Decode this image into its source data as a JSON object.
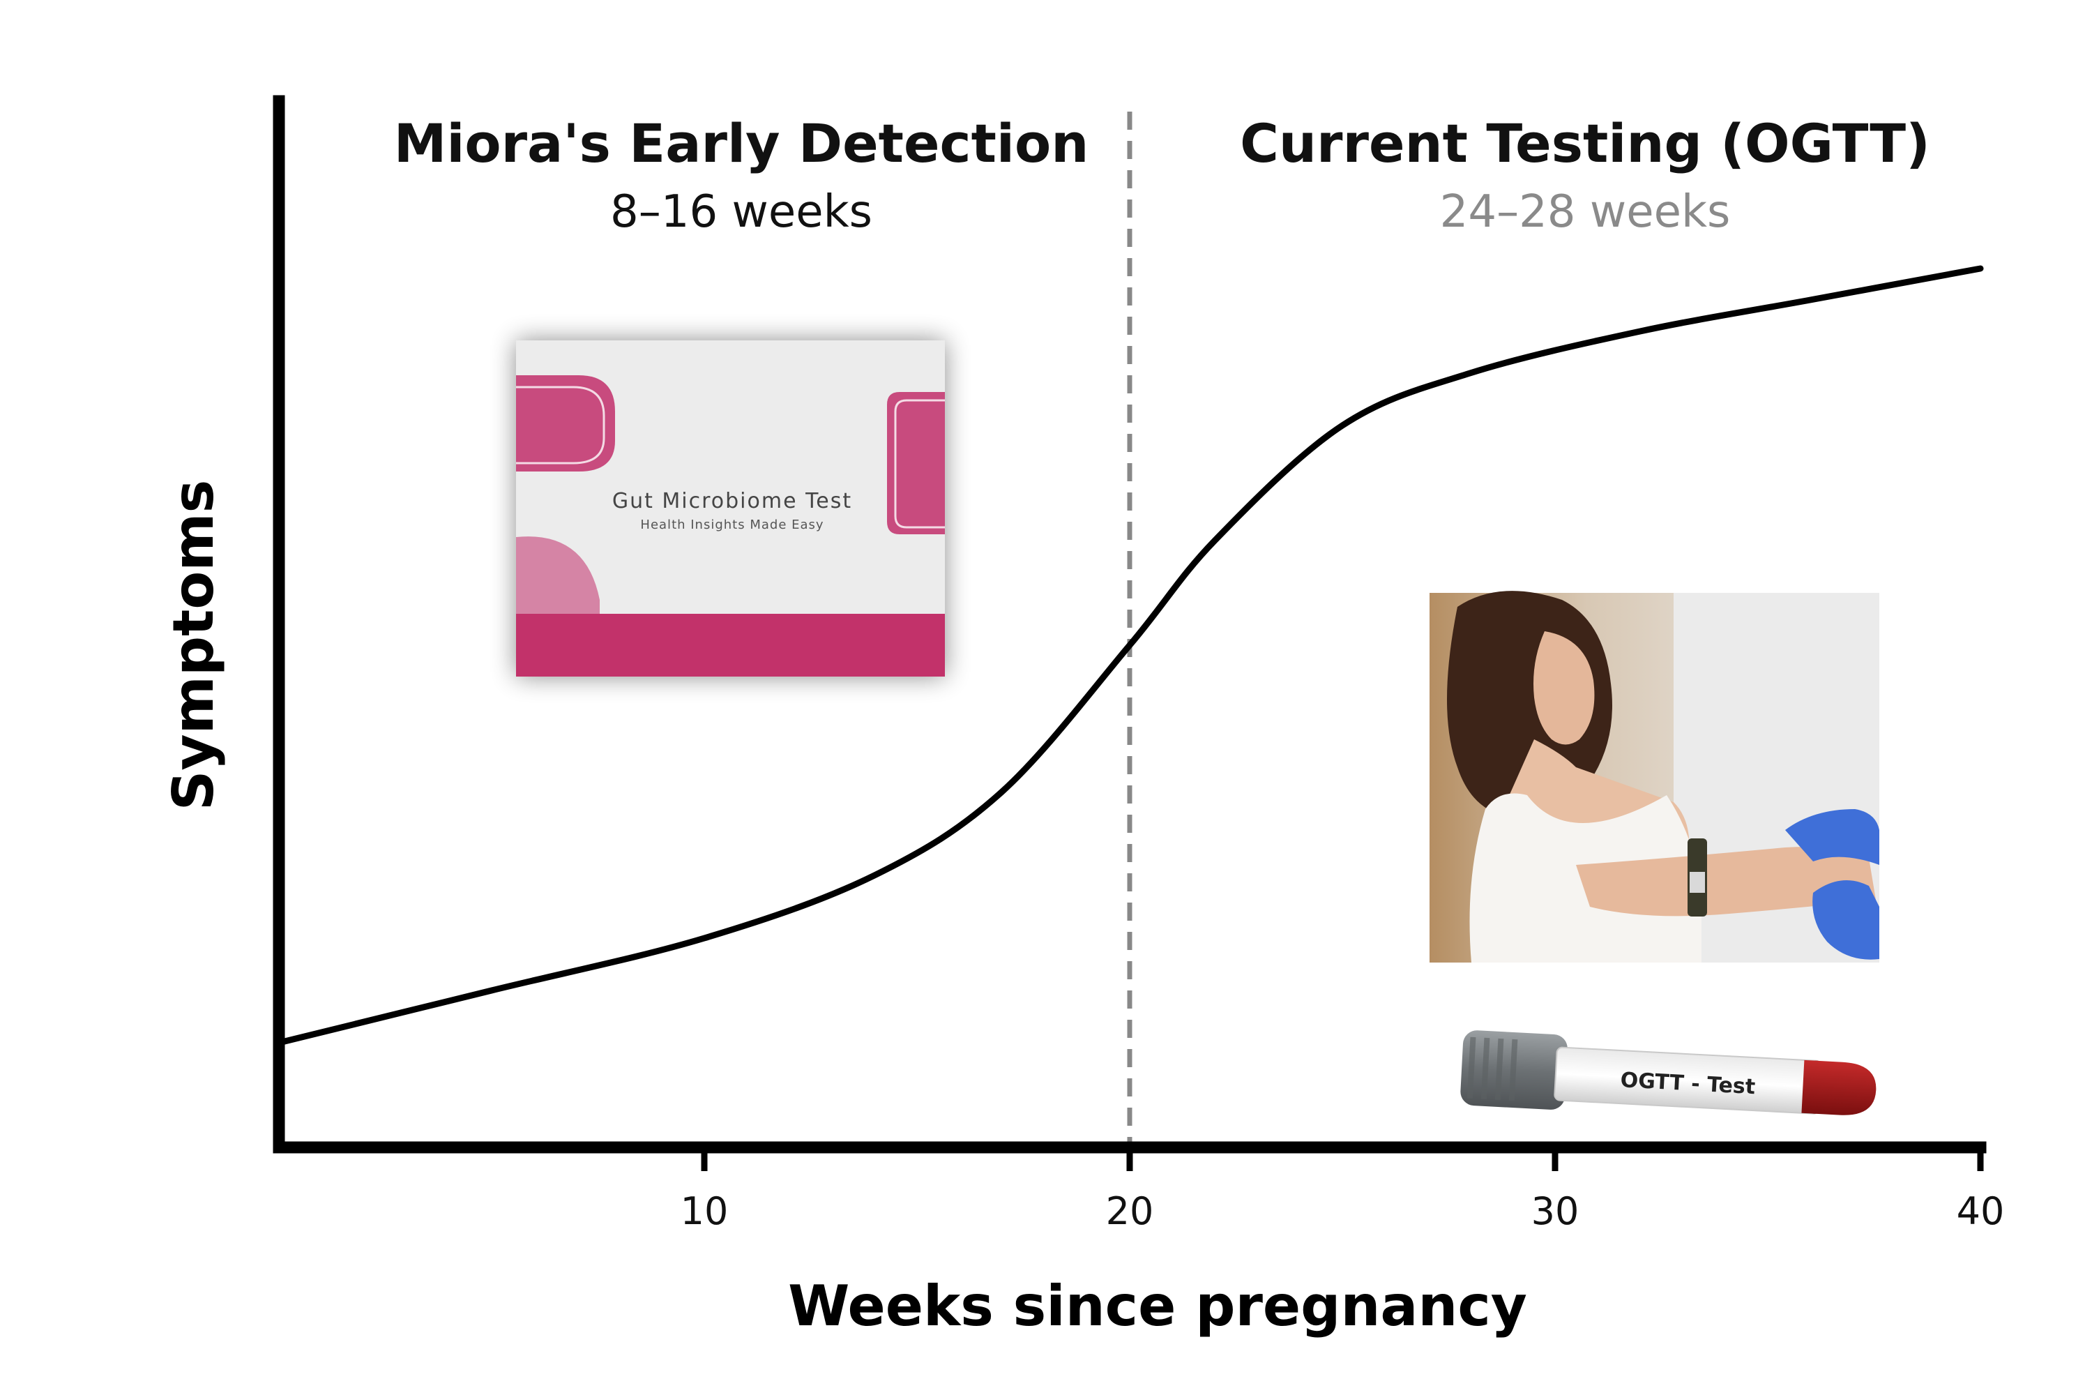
{
  "chart_data": {
    "type": "line",
    "xlabel": "Weeks since pregnancy",
    "ylabel": "Symptoms",
    "xlim": [
      0,
      40
    ],
    "ylim": [
      0,
      100
    ],
    "xticks": [
      10,
      20,
      30,
      40
    ],
    "x_values_weeks": [
      0,
      5,
      10,
      14,
      17,
      20,
      22,
      25,
      28,
      32,
      36,
      40
    ],
    "y_values_symptoms": [
      10,
      15,
      20,
      26,
      34,
      48,
      58,
      69,
      74,
      78,
      81,
      84
    ],
    "divider_x": 20,
    "grid": false,
    "annotations": [
      {
        "title": "Miora's Early Detection",
        "subtitle": "8–16 weeks"
      },
      {
        "title": "Current Testing (OGTT)",
        "subtitle": "24–28 weeks"
      }
    ]
  },
  "images": {
    "kit_box": {
      "title": "Gut Microbiome Test",
      "subtitle": "Health Insights Made Easy"
    },
    "patient_photo": {
      "icon": "blood-draw-photo-icon"
    },
    "tube": {
      "label": "OGTT - Test"
    }
  },
  "colors": {
    "curve": "#000000",
    "axis": "#000000",
    "divider": "#888888",
    "kit_pink": "#c2306b",
    "subtitle_gray": "#8a8a8a",
    "glove_blue": "#3f6fd8",
    "tube_cap": "#7a7f82",
    "tube_blood": "#a01818"
  }
}
